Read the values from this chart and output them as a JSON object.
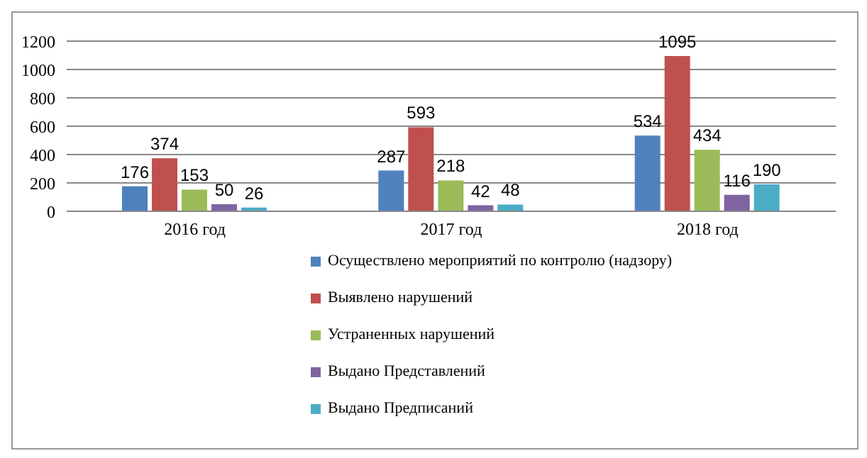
{
  "chart_data": {
    "type": "bar",
    "categories": [
      "2016 год",
      "2017 год",
      "2018 год"
    ],
    "series": [
      {
        "name": "Осуществлено мероприятий по контролю (надзору)",
        "color": "#4f81bd",
        "values": [
          176,
          287,
          534
        ]
      },
      {
        "name": "Выявлено нарушений",
        "color": "#c0504d",
        "values": [
          374,
          593,
          1095
        ]
      },
      {
        "name": "Устраненных нарушений",
        "color": "#9bbb59",
        "values": [
          153,
          218,
          434
        ]
      },
      {
        "name": "Выдано Представлений",
        "color": "#8064a2",
        "values": [
          50,
          42,
          116
        ]
      },
      {
        "name": "Выдано Предписаний",
        "color": "#4bacc6",
        "values": [
          26,
          48,
          190
        ]
      }
    ],
    "ylim": [
      0,
      1200
    ],
    "yticks": [
      0,
      200,
      400,
      600,
      800,
      1000,
      1200
    ],
    "grid": "y",
    "legend": "bottom",
    "data_labels": true
  }
}
